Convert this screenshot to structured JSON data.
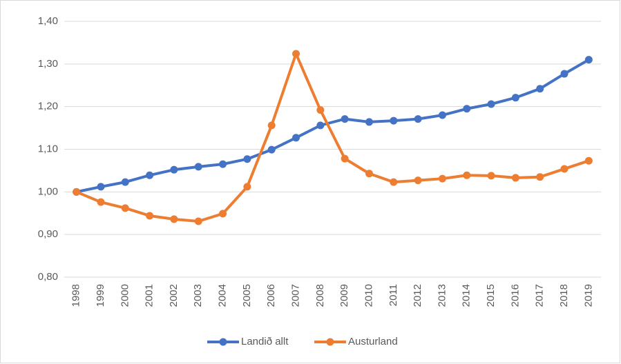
{
  "chart_data": {
    "type": "line",
    "categories": [
      "1998",
      "1999",
      "2000",
      "2001",
      "2002",
      "2003",
      "2004",
      "2005",
      "2006",
      "2007",
      "2008",
      "2009",
      "2010",
      "2011",
      "2012",
      "2013",
      "2014",
      "2015",
      "2016",
      "2017",
      "2018",
      "2019"
    ],
    "series": [
      {
        "name": "Landið allt",
        "color": "#4472c4",
        "values": [
          1.0,
          1.012,
          1.023,
          1.039,
          1.052,
          1.059,
          1.065,
          1.077,
          1.099,
          1.127,
          1.156,
          1.171,
          1.164,
          1.167,
          1.171,
          1.18,
          1.195,
          1.206,
          1.221,
          1.242,
          1.277,
          1.31
        ]
      },
      {
        "name": "Austurland",
        "color": "#ed7d31",
        "values": [
          1.0,
          0.976,
          0.962,
          0.944,
          0.936,
          0.931,
          0.949,
          1.012,
          1.156,
          1.324,
          1.192,
          1.078,
          1.043,
          1.023,
          1.027,
          1.031,
          1.039,
          1.038,
          1.033,
          1.035,
          1.054,
          1.073
        ]
      }
    ],
    "ylim": [
      0.8,
      1.4
    ],
    "yticks": [
      {
        "value": 0.8,
        "label": "0,80"
      },
      {
        "value": 0.9,
        "label": "0,90"
      },
      {
        "value": 1.0,
        "label": "1,00"
      },
      {
        "value": 1.1,
        "label": "1,10"
      },
      {
        "value": 1.2,
        "label": "1,20"
      },
      {
        "value": 1.3,
        "label": "1,30"
      },
      {
        "value": 1.4,
        "label": "1,40"
      }
    ],
    "grid": true,
    "legend": "bottom"
  }
}
